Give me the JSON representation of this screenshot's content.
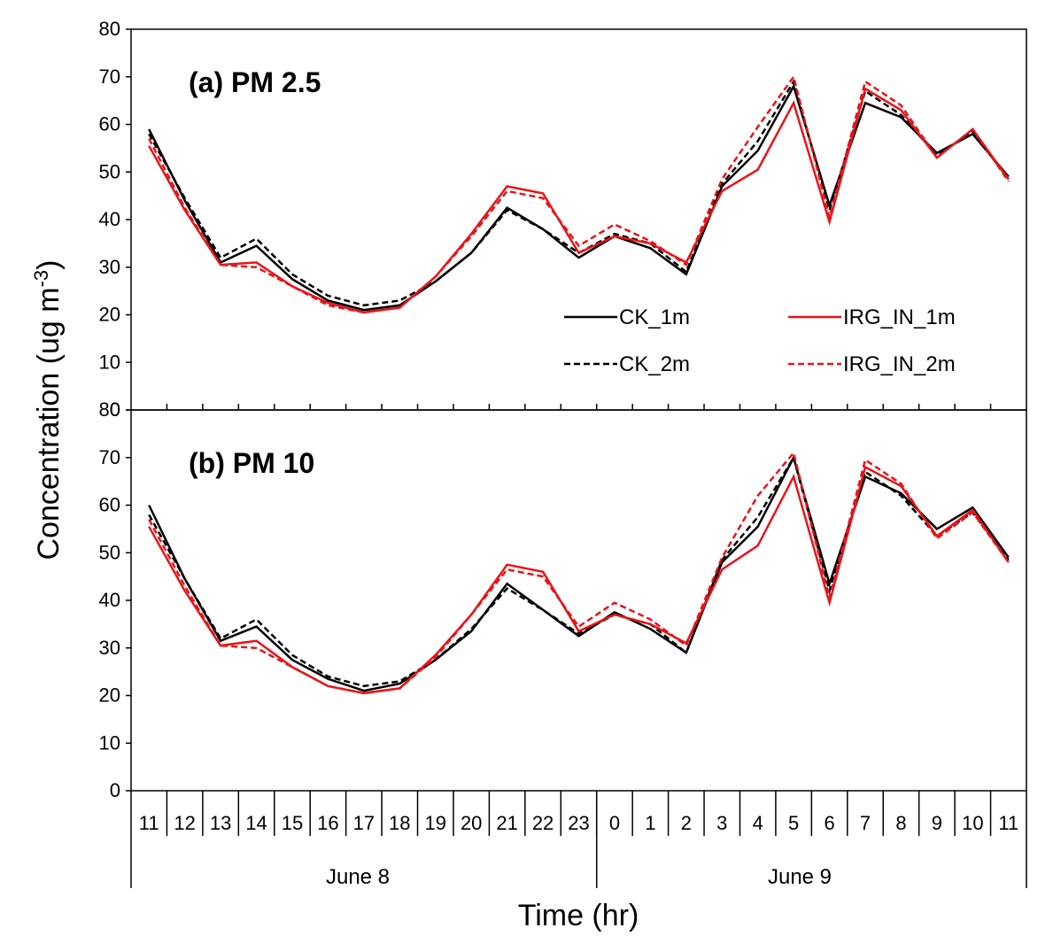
{
  "chart_data": {
    "type": "line",
    "xlabel": "Time (hr)",
    "ylabel": "Concentration (ug m",
    "ylabel_sup": "-3",
    "ylabel_close": ")",
    "x_hours": [
      "11",
      "12",
      "13",
      "14",
      "15",
      "16",
      "17",
      "18",
      "19",
      "20",
      "21",
      "22",
      "23",
      "0",
      "1",
      "2",
      "3",
      "4",
      "5",
      "6",
      "7",
      "8",
      "9",
      "10",
      "11"
    ],
    "days": [
      "June 8",
      "June 9"
    ],
    "ylim": [
      0,
      80
    ],
    "yticks": [
      0,
      10,
      20,
      30,
      40,
      50,
      60,
      70,
      80
    ],
    "legend_position": "lower-right of top panel",
    "series_styles": [
      {
        "name": "CK_1m",
        "color": "#000000",
        "dash": "solid"
      },
      {
        "name": "CK_2m",
        "color": "#000000",
        "dash": "dashed"
      },
      {
        "name": "IRG_IN_1m",
        "color": "#e8141a",
        "dash": "solid"
      },
      {
        "name": "IRG_IN_2m",
        "color": "#e8141a",
        "dash": "dashed"
      }
    ],
    "panels": [
      {
        "title": "(a) PM 2.5",
        "series": [
          {
            "name": "CK_1m",
            "values": [
              59,
              44,
              31,
              34.5,
              27.5,
              23,
              21,
              22,
              27,
              33,
              42.5,
              38,
              32,
              36.5,
              34,
              28.5,
              47,
              54.5,
              68,
              43,
              64.5,
              61.5,
              54,
              58,
              49
            ]
          },
          {
            "name": "CK_2m",
            "values": [
              58,
              44.5,
              32,
              36,
              28.5,
              24,
              22,
              23,
              27,
              33,
              42,
              38,
              33,
              37,
              35,
              29,
              47.5,
              56.5,
              69,
              42,
              67,
              62,
              53.5,
              58.5,
              48.5
            ]
          },
          {
            "name": "IRG_IN_1m",
            "values": [
              55.5,
              42,
              30.5,
              31,
              26,
              22.5,
              20.5,
              21.5,
              28,
              37,
              47,
              45.5,
              33,
              36.5,
              35,
              31,
              46,
              50.5,
              64.5,
              39.5,
              67.5,
              63,
              53,
              59,
              48.5
            ]
          },
          {
            "name": "IRG_IN_2m",
            "values": [
              57,
              42.5,
              30.5,
              30,
              26,
              22,
              20.5,
              21.5,
              28,
              36.5,
              46,
              44.5,
              34.5,
              39,
              35.5,
              30.5,
              48.5,
              59.5,
              70,
              40.5,
              69,
              64,
              53,
              59,
              48
            ]
          }
        ]
      },
      {
        "title": "(b) PM 10",
        "series": [
          {
            "name": "CK_1m",
            "values": [
              60,
              44.5,
              31.5,
              34.5,
              27.5,
              23.5,
              21,
              22.5,
              27.5,
              33.5,
              43.5,
              38,
              32.5,
              37.5,
              34,
              29,
              48,
              55.5,
              70,
              43.5,
              66,
              62.5,
              55,
              59.5,
              49
            ]
          },
          {
            "name": "CK_2m",
            "values": [
              58,
              44.5,
              32,
              36,
              28.5,
              24,
              22,
              23,
              27.5,
              34,
              42.5,
              38,
              33,
              37,
              35,
              29,
              48.5,
              57.5,
              70,
              42,
              67,
              62,
              53.5,
              58.5,
              48.5
            ]
          },
          {
            "name": "IRG_IN_1m",
            "values": [
              55.5,
              42,
              30.5,
              31.5,
              26,
              22,
              20.5,
              21.5,
              28.5,
              37,
              47.5,
              46,
              33.5,
              37,
              35,
              31,
              46.5,
              51.5,
              66,
              39.5,
              68,
              64,
              53.5,
              59,
              48
            ]
          },
          {
            "name": "IRG_IN_2m",
            "values": [
              57,
              43,
              30.5,
              30,
              26,
              22,
              20.5,
              21.5,
              28,
              37,
              46.5,
              45,
              34.5,
              39.5,
              36,
              30.5,
              49,
              62,
              71,
              40.5,
              69.5,
              64.5,
              53,
              58.5,
              48
            ]
          }
        ]
      }
    ]
  }
}
